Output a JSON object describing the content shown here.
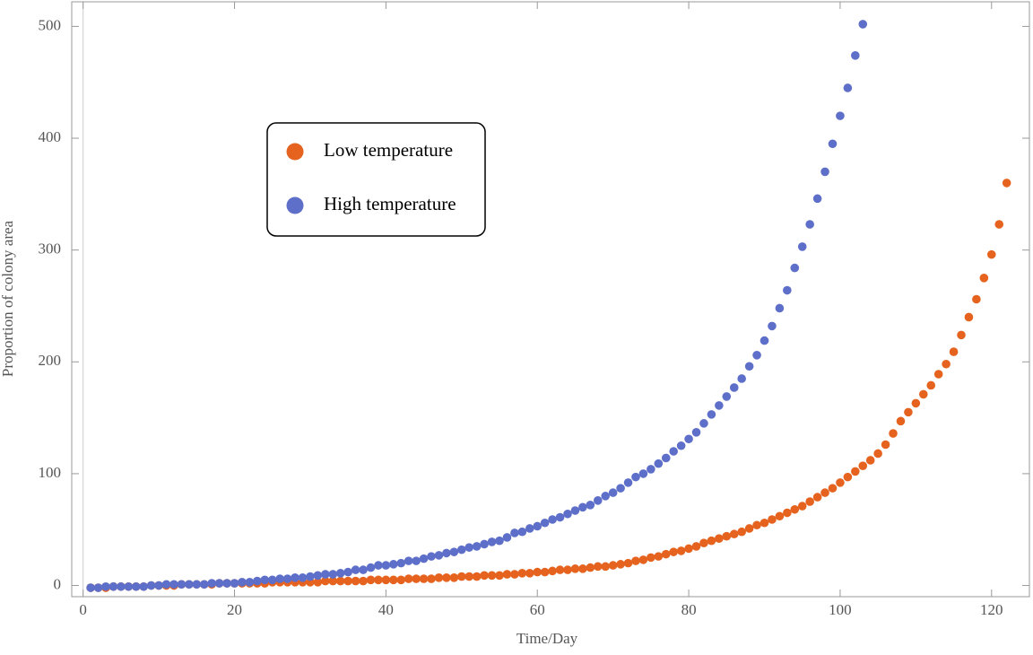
{
  "chart_data": {
    "type": "scatter",
    "x_label": "Time/Day",
    "y_label": "Proportion of colony area",
    "xlim": [
      -1.5,
      125
    ],
    "ylim": [
      -10,
      522
    ],
    "xticks": [
      0,
      20,
      40,
      60,
      80,
      100,
      120
    ],
    "yticks": [
      0,
      100,
      200,
      300,
      400,
      500
    ],
    "legend_position": "upper left",
    "series": [
      {
        "name": "Low temperature",
        "color": "#e5631e",
        "x": [
          1,
          2,
          3,
          4,
          5,
          6,
          7,
          8,
          9,
          10,
          11,
          12,
          13,
          14,
          15,
          16,
          17,
          18,
          19,
          20,
          21,
          22,
          23,
          24,
          25,
          26,
          27,
          28,
          29,
          30,
          31,
          32,
          33,
          34,
          35,
          36,
          37,
          38,
          39,
          40,
          41,
          42,
          43,
          44,
          45,
          46,
          47,
          48,
          49,
          50,
          51,
          52,
          53,
          54,
          55,
          56,
          57,
          58,
          59,
          60,
          61,
          62,
          63,
          64,
          65,
          66,
          67,
          68,
          69,
          70,
          71,
          72,
          73,
          74,
          75,
          76,
          77,
          78,
          79,
          80,
          81,
          82,
          83,
          84,
          85,
          86,
          87,
          88,
          89,
          90,
          91,
          92,
          93,
          94,
          95,
          96,
          97,
          98,
          99,
          100,
          101,
          102,
          103,
          104,
          105,
          106,
          107,
          108,
          109,
          110,
          111,
          112,
          113,
          114,
          115,
          116,
          117,
          118,
          119,
          120,
          121,
          122
        ],
        "values": [
          -2,
          -2,
          -2,
          -1,
          -1,
          -1,
          -1,
          -1,
          0,
          0,
          0,
          0,
          1,
          1,
          1,
          1,
          1,
          2,
          2,
          2,
          2,
          2,
          2,
          2,
          3,
          3,
          3,
          3,
          3,
          3,
          3,
          4,
          4,
          4,
          4,
          4,
          4,
          5,
          5,
          5,
          5,
          5,
          6,
          6,
          6,
          6,
          7,
          7,
          7,
          8,
          8,
          8,
          9,
          9,
          9,
          10,
          10,
          11,
          11,
          12,
          12,
          13,
          14,
          14,
          15,
          15,
          16,
          17,
          17,
          18,
          19,
          20,
          22,
          23,
          25,
          26,
          28,
          30,
          31,
          33,
          35,
          38,
          40,
          42,
          44,
          46,
          48,
          51,
          54,
          56,
          59,
          62,
          65,
          68,
          71,
          75,
          79,
          83,
          87,
          92,
          97,
          102,
          107,
          112,
          118,
          126,
          136,
          147,
          155,
          163,
          171,
          179,
          189,
          198,
          209,
          224,
          240,
          256,
          275,
          296,
          323,
          360
        ]
      },
      {
        "name": "High temperature",
        "color": "#5e6fc9",
        "x": [
          1,
          2,
          3,
          4,
          5,
          6,
          7,
          8,
          9,
          10,
          11,
          12,
          13,
          14,
          15,
          16,
          17,
          18,
          19,
          20,
          21,
          22,
          23,
          24,
          25,
          26,
          27,
          28,
          29,
          30,
          31,
          32,
          33,
          34,
          35,
          36,
          37,
          38,
          39,
          40,
          41,
          42,
          43,
          44,
          45,
          46,
          47,
          48,
          49,
          50,
          51,
          52,
          53,
          54,
          55,
          56,
          57,
          58,
          59,
          60,
          61,
          62,
          63,
          64,
          65,
          66,
          67,
          68,
          69,
          70,
          71,
          72,
          73,
          74,
          75,
          76,
          77,
          78,
          79,
          80,
          81,
          82,
          83,
          84,
          85,
          86,
          87,
          88,
          89,
          90,
          91,
          92,
          93,
          94,
          95,
          96,
          97,
          98,
          99,
          100,
          101,
          102,
          103
        ],
        "values": [
          -2,
          -2,
          -1,
          -1,
          -1,
          -1,
          -1,
          -1,
          0,
          0,
          1,
          1,
          1,
          1,
          1,
          1,
          2,
          2,
          2,
          2,
          3,
          3,
          4,
          5,
          5,
          6,
          6,
          7,
          7,
          8,
          9,
          10,
          10,
          11,
          12,
          14,
          14,
          16,
          18,
          18,
          19,
          20,
          22,
          22,
          24,
          26,
          27,
          29,
          30,
          32,
          34,
          35,
          37,
          39,
          40,
          43,
          47,
          48,
          51,
          53,
          56,
          59,
          61,
          64,
          67,
          70,
          72,
          76,
          80,
          83,
          87,
          92,
          97,
          100,
          104,
          109,
          114,
          120,
          125,
          131,
          137,
          145,
          153,
          161,
          169,
          177,
          185,
          196,
          206,
          219,
          232,
          248,
          264,
          284,
          303,
          323,
          346,
          370,
          395,
          420,
          445,
          474,
          502
        ]
      }
    ]
  }
}
